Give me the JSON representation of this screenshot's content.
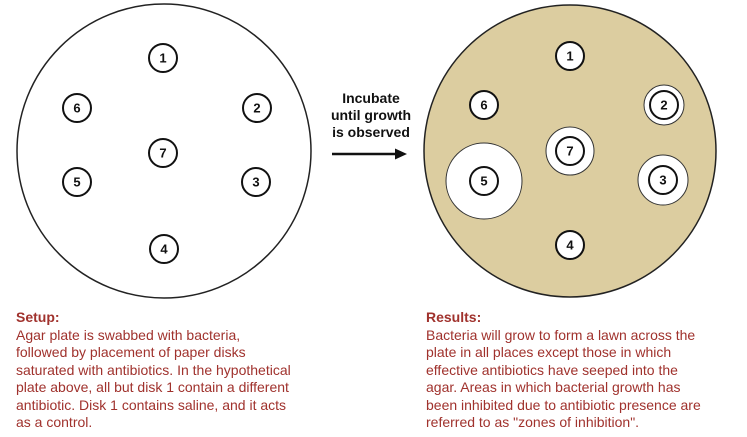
{
  "diagram": {
    "arrow": {
      "lines": [
        "Incubate",
        "until growth",
        "is observed"
      ]
    },
    "colors": {
      "agar": "#dccda0",
      "plate_outline": "#222222",
      "disk_fill": "#ffffff",
      "caption_text": "#a0322d"
    },
    "plate_before": {
      "disks": [
        {
          "label": "1"
        },
        {
          "label": "2"
        },
        {
          "label": "3"
        },
        {
          "label": "4"
        },
        {
          "label": "5"
        },
        {
          "label": "6"
        },
        {
          "label": "7"
        }
      ]
    },
    "plate_after": {
      "disks": [
        {
          "label": "1"
        },
        {
          "label": "2"
        },
        {
          "label": "3"
        },
        {
          "label": "4"
        },
        {
          "label": "5"
        },
        {
          "label": "6"
        },
        {
          "label": "7"
        }
      ]
    }
  },
  "setup": {
    "title": "Setup:",
    "lines": [
      "Agar plate is swabbed with bacteria,",
      "followed by placement of paper disks",
      "saturated with antibiotics. In the hypothetical",
      "plate above, all but disk 1 contain a different",
      "antibiotic. Disk 1 contains saline, and it acts",
      "as a control."
    ]
  },
  "results": {
    "title": "Results:",
    "lines": [
      "Bacteria will grow to form a lawn across the",
      "plate in all places except those in which",
      "effective antibiotics have seeped into the",
      "agar. Areas in which bacterial growth has",
      "been inhibited due to antibiotic presence are",
      "referred to as \"zones of inhibition\"."
    ]
  }
}
